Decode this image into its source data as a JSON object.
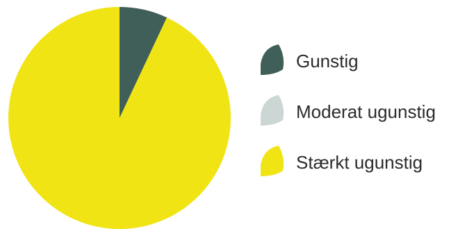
{
  "chart_data": {
    "type": "pie",
    "title": "",
    "series": [
      {
        "name": "Gunstig",
        "value": 7,
        "color": "#3f5f58"
      },
      {
        "name": "Moderat ugunstig",
        "value": 0,
        "color": "#ccd6d4"
      },
      {
        "name": "Stærkt ugunstig",
        "value": 93,
        "color": "#f0e414"
      }
    ],
    "legend_position": "right"
  }
}
